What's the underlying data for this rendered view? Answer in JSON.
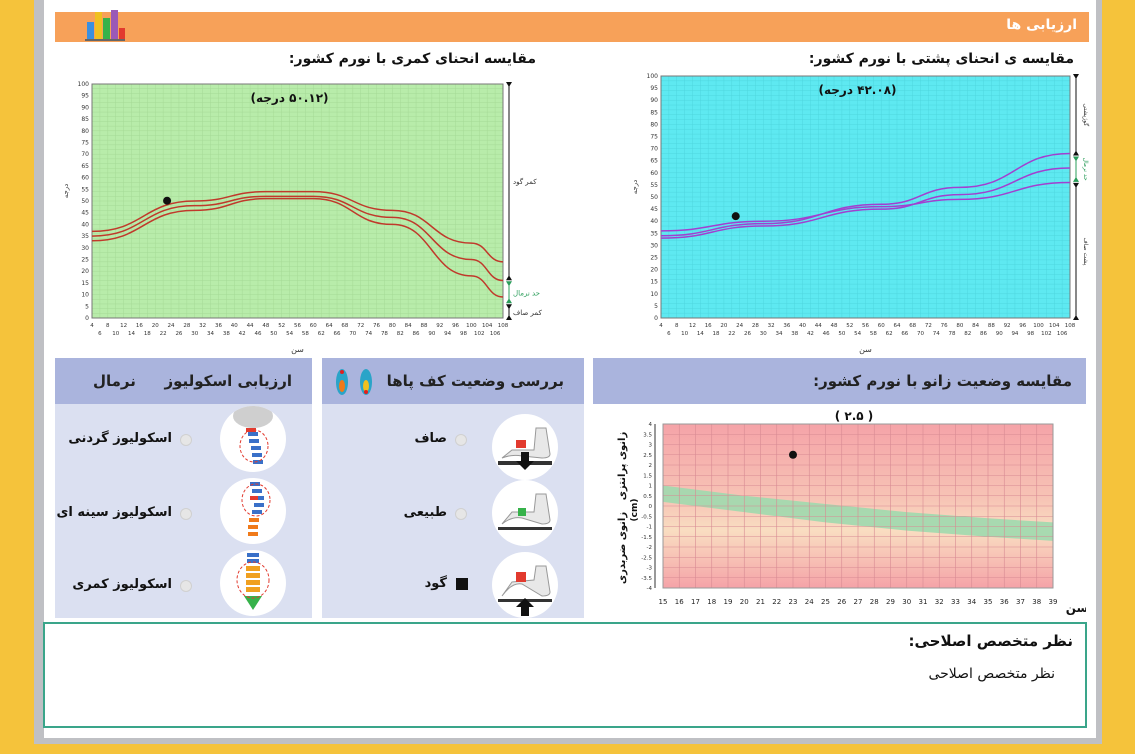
{
  "header": {
    "title": "ارزیابی ها"
  },
  "lumbar": {
    "title": "مقایسه انحنای کمری با نورم کشور:",
    "value_label": "(۵۰.۱۲ درجه)",
    "ylabel": "درجه",
    "xlabel": "سن",
    "zones": {
      "top": "کمر گود",
      "mid": "حد نرمال",
      "bottom": "کمر صاف"
    }
  },
  "thoracic": {
    "title": "مقایسه ی انحنای پشتی با نورم کشور:",
    "value_label": "(۴۲.۰۸ درجه)",
    "ylabel": "درجه",
    "xlabel": "سن",
    "zones": {
      "top": "گوژپشتی",
      "mid": "حد نرمال",
      "bottom": "پشت صاف"
    }
  },
  "knee": {
    "title": "مقایسه وضعیت زانو با نورم کشور:",
    "value_label": "( ۲.۵ )",
    "ylabel_top": "زانوی پرانتزی",
    "ylabel_unit": "(cm)",
    "ylabel_bottom": "زانوی ضربدری",
    "xlabel": "سن"
  },
  "foot": {
    "title": "بررسی وضعیت کف پاها",
    "options": [
      {
        "label": "صاف",
        "selected": false
      },
      {
        "label": "طبیعی",
        "selected": false
      },
      {
        "label": "گود",
        "selected": true
      }
    ]
  },
  "scoliosis": {
    "title": "ارزیابی اسکولیوز",
    "result": "نرمال",
    "options": [
      {
        "label": "اسکولیوز گردنی",
        "selected": false
      },
      {
        "label": "اسکولیوز سینه ای",
        "selected": false
      },
      {
        "label": "اسکولیوز کمری",
        "selected": false
      }
    ]
  },
  "opinion": {
    "title": "نظر متخصص اصلاحی:",
    "text": "نظر متخصص اصلاحی"
  },
  "chart_data": [
    {
      "type": "line",
      "title": "مقایسه انحنای کمری با نورم کشور:",
      "xlabel": "سن",
      "ylabel": "درجه",
      "x": [
        4,
        6,
        8,
        10,
        12,
        14,
        16,
        18,
        20,
        22,
        24,
        26,
        28,
        30,
        32,
        34,
        36,
        38,
        40,
        42,
        44,
        46,
        48,
        50,
        52,
        54,
        56,
        58,
        60,
        62,
        64,
        66,
        68,
        70,
        72,
        74,
        76,
        78,
        80,
        82,
        84,
        86,
        88,
        90,
        92,
        94,
        96,
        98,
        100,
        102,
        104,
        106,
        108
      ],
      "xlim": [
        4,
        108
      ],
      "ylim": [
        0,
        100
      ],
      "series": [
        {
          "points": [
            [
              4,
              37
            ],
            [
              30,
              50
            ],
            [
              48,
              54
            ],
            [
              60,
              54
            ],
            [
              80,
              46
            ],
            [
              100,
              32
            ],
            [
              108,
              24
            ]
          ]
        },
        {
          "points": [
            [
              4,
              35
            ],
            [
              30,
              48
            ],
            [
              48,
              52
            ],
            [
              60,
              52
            ],
            [
              80,
              43
            ],
            [
              100,
              25
            ],
            [
              108,
              16
            ]
          ]
        },
        {
          "points": [
            [
              4,
              33
            ],
            [
              30,
              46
            ],
            [
              48,
              51
            ],
            [
              60,
              51
            ],
            [
              80,
              40
            ],
            [
              100,
              18
            ],
            [
              108,
              9
            ]
          ]
        }
      ],
      "point": {
        "x": 23,
        "y": 50.12
      }
    },
    {
      "type": "line",
      "title": "مقایسه ی انحنای پشتی با نورم کشور:",
      "xlabel": "سن",
      "ylabel": "درجه",
      "x": [
        4,
        6,
        8,
        10,
        12,
        14,
        16,
        18,
        20,
        22,
        24,
        26,
        28,
        30,
        32,
        34,
        36,
        38,
        40,
        42,
        44,
        46,
        48,
        50,
        52,
        54,
        56,
        58,
        60,
        62,
        64,
        66,
        68,
        70,
        72,
        74,
        76,
        78,
        80,
        82,
        84,
        86,
        88,
        90,
        92,
        94,
        96,
        98,
        100,
        102,
        104,
        106,
        108
      ],
      "xlim": [
        4,
        108
      ],
      "ylim": [
        0,
        100
      ],
      "series": [
        {
          "points": [
            [
              4,
              34
            ],
            [
              30,
              39
            ],
            [
              60,
              47
            ],
            [
              80,
              54
            ],
            [
              108,
              68
            ]
          ]
        },
        {
          "points": [
            [
              4,
              33
            ],
            [
              30,
              38
            ],
            [
              60,
              45
            ],
            [
              80,
              51
            ],
            [
              108,
              62
            ]
          ]
        },
        {
          "points": [
            [
              4,
              36
            ],
            [
              30,
              40
            ],
            [
              60,
              46
            ],
            [
              80,
              49
            ],
            [
              108,
              56
            ]
          ]
        }
      ],
      "point": {
        "x": 23,
        "y": 42.08
      }
    },
    {
      "type": "area",
      "title": "مقایسه وضعیت زانو با نورم کشور:",
      "xlabel": "سن",
      "x": [
        15,
        16,
        17,
        18,
        19,
        20,
        21,
        22,
        23,
        24,
        25,
        26,
        27,
        28,
        29,
        30,
        31,
        32,
        33,
        34,
        35,
        36,
        37,
        38,
        39
      ],
      "xlim": [
        15,
        39
      ],
      "ylim": [
        -4,
        4
      ],
      "yticks": [
        4,
        3.5,
        3,
        2.5,
        2,
        1.5,
        1,
        0.5,
        0,
        -0.5,
        -1,
        -1.5,
        -2,
        -2.5,
        -3,
        -3.5,
        -4
      ],
      "band_upper": [
        [
          15,
          1
        ],
        [
          20,
          0.5
        ],
        [
          25,
          0.1
        ],
        [
          30,
          -0.3
        ],
        [
          35,
          -0.6
        ],
        [
          39,
          -0.8
        ]
      ],
      "band_lower": [
        [
          15,
          0.2
        ],
        [
          20,
          -0.3
        ],
        [
          25,
          -0.8
        ],
        [
          30,
          -1.2
        ],
        [
          35,
          -1.5
        ],
        [
          39,
          -1.7
        ]
      ],
      "point": {
        "x": 23,
        "y": 2.5
      }
    }
  ]
}
